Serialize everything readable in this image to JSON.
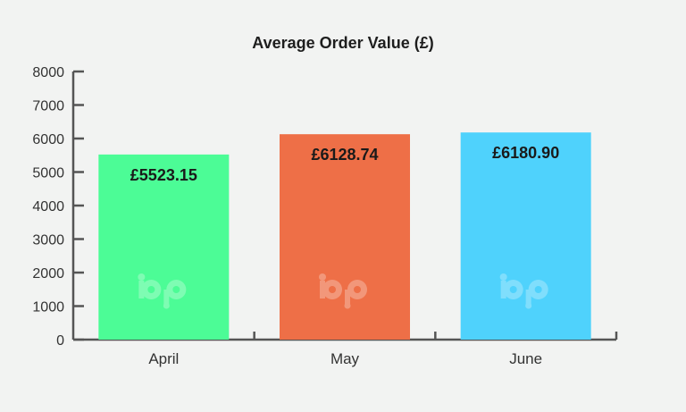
{
  "chart_data": {
    "type": "bar",
    "title": "Average Order Value (£)",
    "xlabel": "",
    "ylabel": "",
    "categories": [
      "April",
      "May",
      "June"
    ],
    "values": [
      5523.15,
      6128.74,
      6180.9
    ],
    "data_labels": [
      "£5523.15",
      "£6128.74",
      "£6180.90"
    ],
    "bar_colors": [
      "#4cfc96",
      "#ee6f47",
      "#4fd2fc"
    ],
    "ylim": [
      0,
      8000
    ],
    "y_ticks": [
      "0",
      "1000",
      "2000",
      "3000",
      "4000",
      "5000",
      "6000",
      "7000",
      "8000"
    ],
    "grid": false,
    "legend": "none",
    "watermark_icon": "bp-logo-icon",
    "watermark_text": "bp"
  }
}
